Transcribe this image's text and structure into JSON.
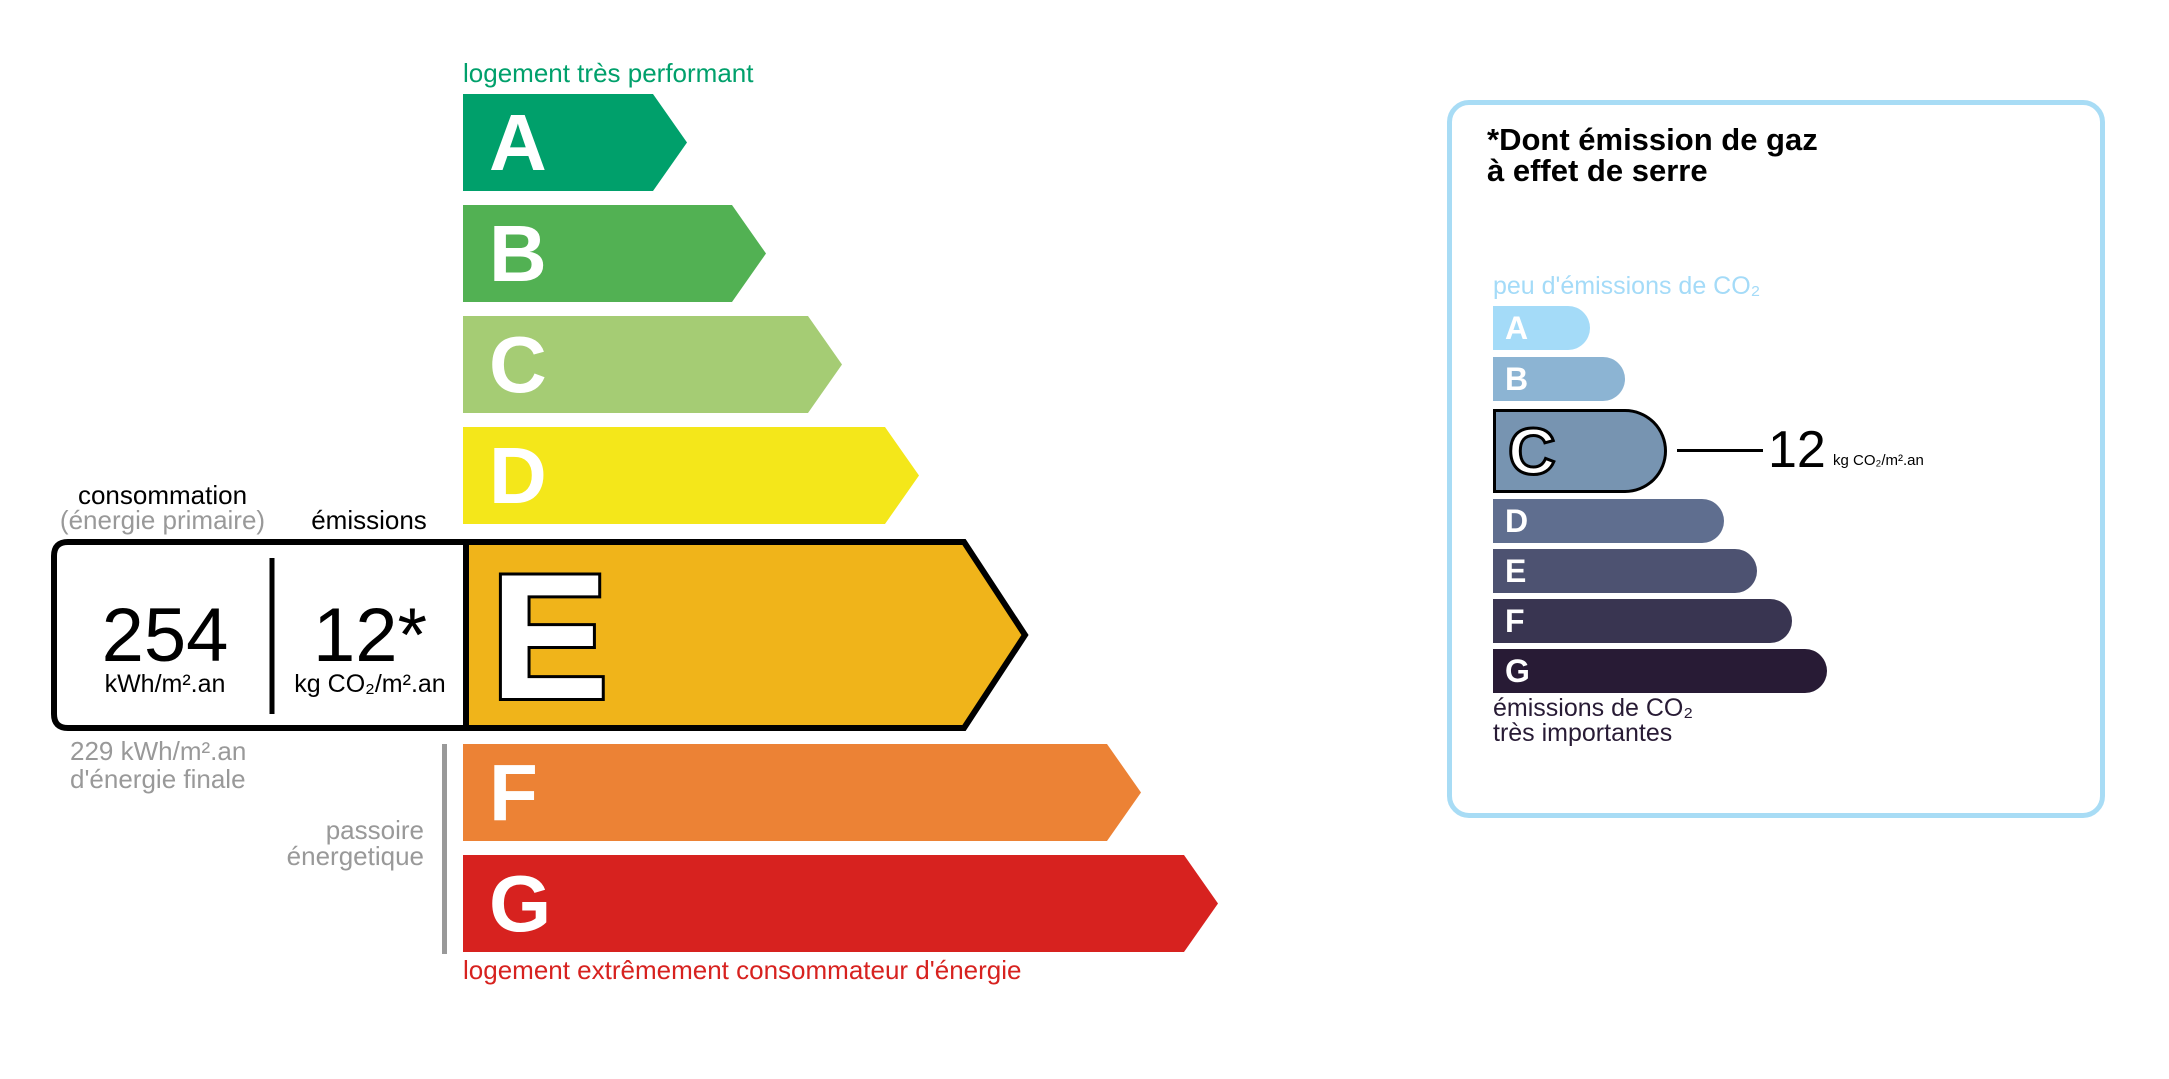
{
  "energy": {
    "top_label": "logement très performant",
    "bottom_label": "logement extrêmement consommateur d'énergie",
    "classes": [
      {
        "letter": "A",
        "color": "#00a06b"
      },
      {
        "letter": "B",
        "color": "#52b153"
      },
      {
        "letter": "C",
        "color": "#a5cc74"
      },
      {
        "letter": "D",
        "color": "#f4e71a"
      },
      {
        "letter": "E",
        "color": "#f0b41a"
      },
      {
        "letter": "F",
        "color": "#ec8235"
      },
      {
        "letter": "G",
        "color": "#d7221f"
      }
    ],
    "current_class": "E",
    "consumption_label": "consommation",
    "consumption_sublabel": "(énergie primaire)",
    "emissions_label": "émissions",
    "consumption_value": "254",
    "consumption_unit": "kWh/m².an",
    "emissions_value": "12*",
    "emissions_unit": "kg CO₂/m².an",
    "final_energy_line1": "229 kWh/m².an",
    "final_energy_line2": "d'énergie finale",
    "passoire_line1": "passoire",
    "passoire_line2": "énergetique"
  },
  "ghg": {
    "title_line1": "*Dont émission de gaz",
    "title_line2": "à effet de serre",
    "top_label": "peu d'émissions de CO₂",
    "bottom_line1": "émissions de CO₂",
    "bottom_line2": "très importantes",
    "classes": [
      {
        "letter": "A",
        "color": "#a4dbf8"
      },
      {
        "letter": "B",
        "color": "#8cb4d3"
      },
      {
        "letter": "C",
        "color": "#7794b1"
      },
      {
        "letter": "D",
        "color": "#5f6e8f"
      },
      {
        "letter": "E",
        "color": "#4d5271"
      },
      {
        "letter": "F",
        "color": "#393551"
      },
      {
        "letter": "G",
        "color": "#281b35"
      }
    ],
    "current_class": "C",
    "value": "12",
    "unit": "kg CO₂/m².an",
    "panel_border_color": "#a8dcf5"
  }
}
